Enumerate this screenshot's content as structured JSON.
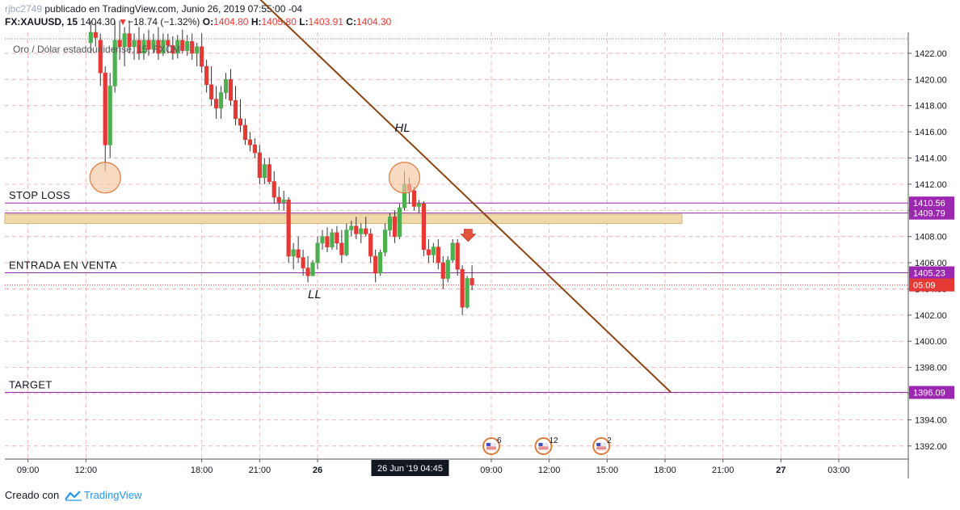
{
  "header": {
    "author": "rjbc2749",
    "published": " publicado en TradingView.com, Junio 26, 2019 07:55:00 -04",
    "symbol": "FX:XAUUSD, 15",
    "last": "1404.30",
    "change": "−18.74 (−1.32%)",
    "open_label": "O:",
    "open": "1404.80",
    "high_label": "H:",
    "high": "1405.80",
    "low_label": "L:",
    "low": "1403.91",
    "close_label": "C:",
    "close": "1404.30"
  },
  "footer": {
    "text": "Creado con",
    "brand": "TradingView"
  },
  "chart_data": {
    "type": "candlestick",
    "legend": "Oro / Dólar estadounidense, 15, FXCM",
    "ylim": [
      1391,
      1423.6
    ],
    "y_ticks": [
      1392,
      1394,
      1396,
      1398,
      1400,
      1402,
      1404,
      1406,
      1408,
      1410,
      1412,
      1414,
      1416,
      1418,
      1420,
      1422
    ],
    "y_tick_labels": [
      "1392.00",
      "1394.00",
      "1396.00",
      "1398.00",
      "1400.00",
      "1402.00",
      "1404.00",
      "1406.00",
      "1408.00",
      "1410.00",
      "1412.00",
      "1414.00",
      "1416.00",
      "1418.00",
      "1420.00",
      "1422.00"
    ],
    "x_ticks": [
      {
        "label": "09:00",
        "h": 9
      },
      {
        "label": "12:00",
        "h": 12
      },
      {
        "label": "18:00",
        "h": 18
      },
      {
        "label": "21:00",
        "h": 21
      },
      {
        "label": "26",
        "h": 24,
        "bold": true
      },
      {
        "label": "09:00",
        "h": 33
      },
      {
        "label": "12:00",
        "h": 36
      },
      {
        "label": "15:00",
        "h": 39
      },
      {
        "label": "18:00",
        "h": 42
      },
      {
        "label": "21:00",
        "h": 45
      },
      {
        "label": "27",
        "h": 48,
        "bold": true
      },
      {
        "label": "03:00",
        "h": 51
      }
    ],
    "crosshair_label": "26 Jun '19   04:45",
    "crosshair_h": 28.75,
    "candle_interval_h": 0.25,
    "candles": [
      [
        12.25,
        1422.8,
        1424.5,
        1422.0,
        1423.6
      ],
      [
        12.5,
        1423.6,
        1424.3,
        1422.5,
        1423.2
      ],
      [
        12.75,
        1423.0,
        1423.5,
        1419.5,
        1420.5
      ],
      [
        13.0,
        1420.5,
        1421.0,
        1413.0,
        1415.0
      ],
      [
        13.25,
        1415.0,
        1420.5,
        1414.0,
        1419.5
      ],
      [
        13.5,
        1419.5,
        1424.5,
        1419.0,
        1423.0
      ],
      [
        13.75,
        1423.0,
        1424.5,
        1421.5,
        1422.5
      ],
      [
        14.0,
        1422.5,
        1424.0,
        1421.0,
        1423.5
      ],
      [
        14.25,
        1423.5,
        1424.5,
        1422.0,
        1422.5
      ],
      [
        14.5,
        1422.5,
        1423.5,
        1421.5,
        1423.0
      ],
      [
        14.75,
        1423.0,
        1424.0,
        1421.5,
        1422.0
      ],
      [
        15.0,
        1422.0,
        1423.5,
        1421.5,
        1423.0
      ],
      [
        15.25,
        1423.0,
        1423.8,
        1421.8,
        1422.3
      ],
      [
        15.5,
        1422.3,
        1423.5,
        1422.0,
        1423.0
      ],
      [
        15.75,
        1423.0,
        1424.0,
        1421.5,
        1422.0
      ],
      [
        16.0,
        1422.0,
        1423.5,
        1421.8,
        1423.0
      ],
      [
        16.25,
        1423.0,
        1423.5,
        1422.0,
        1422.6
      ],
      [
        16.5,
        1422.6,
        1423.3,
        1421.5,
        1422.0
      ],
      [
        16.75,
        1422.0,
        1423.4,
        1421.6,
        1423.0
      ],
      [
        17.0,
        1423.0,
        1423.8,
        1422.0,
        1422.2
      ],
      [
        17.25,
        1422.2,
        1423.4,
        1421.8,
        1422.9
      ],
      [
        17.5,
        1422.9,
        1423.5,
        1421.5,
        1422.0
      ],
      [
        17.75,
        1422.0,
        1422.8,
        1421.0,
        1422.5
      ],
      [
        18.0,
        1422.5,
        1423.5,
        1420.5,
        1421.0
      ],
      [
        18.25,
        1421.0,
        1421.5,
        1419.0,
        1419.6
      ],
      [
        18.5,
        1419.6,
        1421.0,
        1418.0,
        1418.5
      ],
      [
        18.75,
        1418.5,
        1419.5,
        1417.0,
        1417.8
      ],
      [
        19.0,
        1417.8,
        1419.5,
        1417.0,
        1419.0
      ],
      [
        19.25,
        1419.0,
        1420.5,
        1418.5,
        1420.0
      ],
      [
        19.5,
        1420.0,
        1420.8,
        1418.0,
        1418.4
      ],
      [
        19.75,
        1418.4,
        1419.5,
        1416.5,
        1417.0
      ],
      [
        20.0,
        1417.0,
        1418.5,
        1416.0,
        1416.5
      ],
      [
        20.25,
        1416.5,
        1417.0,
        1415.0,
        1415.4
      ],
      [
        20.5,
        1415.4,
        1416.0,
        1414.5,
        1415.0
      ],
      [
        20.75,
        1415.0,
        1415.5,
        1414.0,
        1414.4
      ],
      [
        21.0,
        1414.4,
        1415.0,
        1412.0,
        1412.5
      ],
      [
        21.25,
        1412.5,
        1414.0,
        1412.0,
        1413.5
      ],
      [
        21.5,
        1413.5,
        1414.0,
        1412.0,
        1412.2
      ],
      [
        21.75,
        1412.2,
        1413.0,
        1410.5,
        1411.0
      ],
      [
        22.0,
        1411.0,
        1411.8,
        1410.0,
        1410.6
      ],
      [
        22.25,
        1410.6,
        1411.5,
        1410.0,
        1410.8
      ],
      [
        22.5,
        1410.8,
        1411.0,
        1406.0,
        1406.5
      ],
      [
        22.75,
        1406.5,
        1407.5,
        1405.5,
        1407.0
      ],
      [
        23.0,
        1407.0,
        1408.0,
        1406.0,
        1406.4
      ],
      [
        23.25,
        1406.4,
        1407.0,
        1405.0,
        1405.6
      ],
      [
        23.5,
        1405.6,
        1406.5,
        1404.5,
        1405.0
      ],
      [
        23.75,
        1405.0,
        1406.2,
        1405.0,
        1406.0
      ],
      [
        24.0,
        1406.0,
        1408.0,
        1405.5,
        1407.5
      ],
      [
        24.25,
        1407.5,
        1408.5,
        1407.0,
        1408.0
      ],
      [
        24.5,
        1408.0,
        1408.7,
        1406.8,
        1407.2
      ],
      [
        24.75,
        1407.2,
        1408.6,
        1407.0,
        1408.3
      ],
      [
        25.0,
        1408.3,
        1408.8,
        1407.0,
        1407.5
      ],
      [
        25.25,
        1407.5,
        1408.5,
        1406.0,
        1406.6
      ],
      [
        25.5,
        1406.6,
        1409.0,
        1406.5,
        1408.5
      ],
      [
        25.75,
        1408.5,
        1409.2,
        1408.0,
        1408.8
      ],
      [
        26.0,
        1408.8,
        1409.5,
        1407.8,
        1408.2
      ],
      [
        26.25,
        1408.2,
        1409.0,
        1407.5,
        1408.6
      ],
      [
        26.5,
        1408.6,
        1409.5,
        1408.0,
        1408.2
      ],
      [
        26.75,
        1408.2,
        1408.6,
        1406.0,
        1406.5
      ],
      [
        27.0,
        1406.5,
        1407.0,
        1404.5,
        1405.2
      ],
      [
        27.25,
        1405.2,
        1407.0,
        1405.0,
        1406.8
      ],
      [
        27.5,
        1406.8,
        1409.0,
        1406.5,
        1408.5
      ],
      [
        27.75,
        1408.5,
        1409.8,
        1408.0,
        1409.5
      ],
      [
        28.0,
        1409.5,
        1410.0,
        1407.5,
        1408.0
      ],
      [
        28.25,
        1408.0,
        1410.5,
        1407.8,
        1410.2
      ],
      [
        28.5,
        1410.2,
        1413.0,
        1410.0,
        1412.0
      ],
      [
        28.75,
        1412.0,
        1412.5,
        1410.5,
        1411.5
      ],
      [
        29.0,
        1411.5,
        1411.8,
        1410.0,
        1410.3
      ],
      [
        29.25,
        1410.3,
        1410.8,
        1409.8,
        1410.5
      ],
      [
        29.5,
        1410.5,
        1410.7,
        1406.5,
        1407.0
      ],
      [
        29.75,
        1407.0,
        1407.8,
        1406.0,
        1406.6
      ],
      [
        30.0,
        1406.6,
        1407.5,
        1406.0,
        1407.2
      ],
      [
        30.25,
        1407.2,
        1407.8,
        1405.5,
        1406.0
      ],
      [
        30.5,
        1406.0,
        1406.5,
        1404.0,
        1404.8
      ],
      [
        30.75,
        1404.8,
        1406.5,
        1404.5,
        1406.2
      ],
      [
        31.0,
        1406.2,
        1407.8,
        1406.0,
        1407.5
      ],
      [
        31.25,
        1407.5,
        1407.8,
        1405.0,
        1405.5
      ],
      [
        31.5,
        1405.5,
        1405.8,
        1402.0,
        1402.6
      ],
      [
        31.75,
        1402.6,
        1405.0,
        1402.5,
        1404.8
      ],
      [
        32.0,
        1404.8,
        1405.8,
        1403.9,
        1404.3
      ]
    ],
    "hlines": [
      {
        "label": "STOP LOSS",
        "y": 1410.56,
        "price": "1410.56"
      },
      {
        "label": "",
        "y": 1409.79,
        "price": "1409.79"
      },
      {
        "label": "ENTRADA EN VENTA",
        "y": 1405.23,
        "price": "1405.23"
      },
      {
        "label": "TARGET",
        "y": 1396.09,
        "price": "1396.09"
      }
    ],
    "zone": {
      "top": 1409.7,
      "bottom": 1409.0,
      "h_start": 7.0,
      "h_end": 42.5
    },
    "last_price_tag": "05:09",
    "last_price": 1404.3,
    "trendline": [
      [
        20.75,
        1426.5
      ],
      [
        42.3,
        1396.1
      ]
    ],
    "annotations": [
      {
        "text": "HL",
        "h": 28.0,
        "y": 1416.0
      },
      {
        "text": "LL",
        "h": 23.5,
        "y": 1403.3
      }
    ],
    "circles": [
      {
        "h": 13.0,
        "y": 1412.5
      },
      {
        "h": 28.5,
        "y": 1412.5
      }
    ],
    "arrow": {
      "h": 31.8,
      "y": 1408.0
    },
    "events": [
      {
        "h": 33.0,
        "count": "6"
      },
      {
        "h": 35.7,
        "count": "12"
      },
      {
        "h": 38.7,
        "count": "2"
      }
    ],
    "colors": {
      "up": "#4caf50",
      "down": "#e53935",
      "level": "#9c27b0",
      "zone": "#efd8aa",
      "trendline": "#8b4513",
      "grid": "#e88b8b",
      "circle": "#f5c5a0"
    }
  }
}
